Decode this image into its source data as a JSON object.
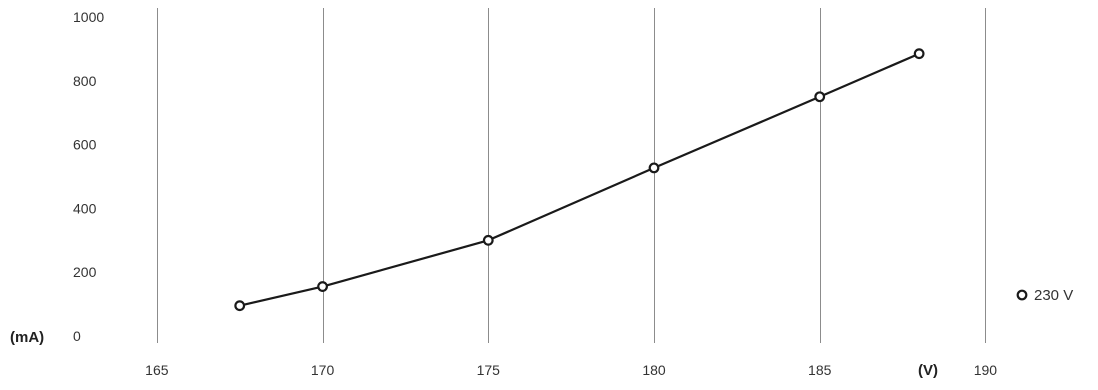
{
  "chart_data": {
    "type": "line",
    "title": "",
    "xlabel": "(V)",
    "ylabel": "(mA)",
    "xlim": [
      162.5,
      190.5
    ],
    "ylim": [
      0,
      1000
    ],
    "xticks": [
      165,
      170,
      175,
      180,
      185,
      190
    ],
    "yticks": [
      0,
      200,
      400,
      600,
      800,
      1000
    ],
    "grid": {
      "vertical": true,
      "horizontal": false
    },
    "legend_placement": "right",
    "series": [
      {
        "name": "230 V",
        "color": "#1a1a1a",
        "marker": "open-circle",
        "x": [
          167.5,
          170,
          175,
          180,
          185,
          188
        ],
        "y": [
          95,
          155,
          300,
          527,
          750,
          885
        ]
      }
    ]
  }
}
